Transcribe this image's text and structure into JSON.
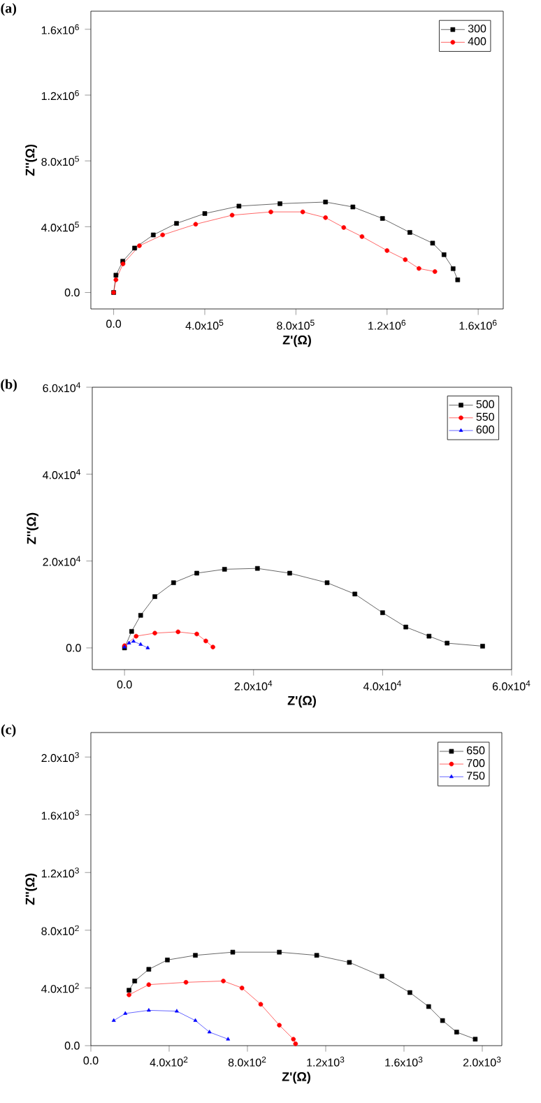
{
  "chart_data": [
    {
      "type": "line",
      "title": "(a)",
      "xlabel": "Z'(Ω)",
      "ylabel": "Z''(Ω)",
      "legend": "top right",
      "grid": false,
      "xlim": [
        -100000,
        1710000
      ],
      "ylim": [
        -100000,
        1710000
      ],
      "xticks": [
        {
          "value": 0,
          "label": "0.0"
        },
        {
          "value": 400000,
          "label": "4.0x10$^{5}$"
        },
        {
          "value": 800000,
          "label": "8.0x10$^{5}$"
        },
        {
          "value": 1200000,
          "label": "1.2x10$^{6}$"
        },
        {
          "value": 1600000,
          "label": "1.6x10$^{6}$"
        }
      ],
      "yticks": [
        {
          "value": 0,
          "label": "0.0"
        },
        {
          "value": 400000,
          "label": "4.0x10$^{5}$"
        },
        {
          "value": 800000,
          "label": "8.0x10$^{5}$"
        },
        {
          "value": 1200000,
          "label": "1.2x10$^{6}$"
        },
        {
          "value": 1600000,
          "label": "1.6x10$^{6}$"
        }
      ],
      "series": [
        {
          "name": "300",
          "color": "#000000",
          "marker": "square",
          "x": [
            0,
            10000,
            40000,
            92000,
            174000,
            276000,
            400000,
            550000,
            730000,
            930000,
            1050000,
            1180000,
            1300000,
            1400000,
            1450000,
            1490000,
            1510000
          ],
          "values": [
            0,
            105000,
            190000,
            270000,
            350000,
            420000,
            480000,
            525000,
            540000,
            550000,
            520000,
            450000,
            365000,
            300000,
            230000,
            145000,
            77000
          ]
        },
        {
          "name": "400",
          "color": "#ff0000",
          "marker": "circle",
          "x": [
            0,
            10000,
            41000,
            113000,
            215000,
            360000,
            520000,
            690000,
            830000,
            930000,
            1010000,
            1090000,
            1200000,
            1280000,
            1340000,
            1410000
          ],
          "values": [
            0,
            77000,
            174000,
            284000,
            350000,
            415000,
            470000,
            490000,
            490000,
            455000,
            395000,
            340000,
            255000,
            200000,
            146000,
            127000
          ]
        }
      ]
    },
    {
      "type": "line",
      "title": "(b)",
      "xlabel": "Z'(Ω)",
      "ylabel": "Z''(Ω)",
      "legend": "top right",
      "grid": false,
      "xlim": [
        -5000,
        60000
      ],
      "ylim": [
        -5000,
        60000
      ],
      "xticks": [
        {
          "value": 0,
          "label": "0.0"
        },
        {
          "value": 20000,
          "label": "2.0x10$^{4}$"
        },
        {
          "value": 40000,
          "label": "4.0x10$^{4}$"
        },
        {
          "value": 60000,
          "label": "6.0x10$^{4}$"
        }
      ],
      "yticks": [
        {
          "value": 0,
          "label": "0.0"
        },
        {
          "value": 20000,
          "label": "2.0x10$^{4}$"
        },
        {
          "value": 40000,
          "label": "4.0x10$^{4}$"
        },
        {
          "value": 60000,
          "label": "6.0x10$^{4}$"
        }
      ],
      "series": [
        {
          "name": "500",
          "color": "#000000",
          "marker": "square",
          "x": [
            0,
            1100,
            2500,
            4700,
            7600,
            11200,
            15500,
            20600,
            25600,
            31400,
            35700,
            40000,
            43600,
            47200,
            50000,
            55500
          ],
          "values": [
            0,
            3800,
            7500,
            11800,
            15000,
            17200,
            18100,
            18300,
            17200,
            15000,
            12400,
            8100,
            4800,
            2700,
            1100,
            400
          ]
        },
        {
          "name": "550",
          "color": "#ff0000",
          "marker": "circle",
          "x": [
            0,
            1800,
            4700,
            8300,
            11200,
            12600,
            13700
          ],
          "values": [
            500,
            2700,
            3400,
            3700,
            3200,
            1600,
            200
          ]
        },
        {
          "name": "600",
          "color": "#0000ff",
          "marker": "triangle",
          "x": [
            0,
            700,
            1400,
            2500,
            3600
          ],
          "values": [
            200,
            1100,
            1500,
            800,
            0
          ]
        }
      ]
    },
    {
      "type": "line",
      "title": "(c)",
      "xlabel": "Z'(Ω)",
      "ylabel": "Z''(Ω)",
      "legend": "top right",
      "grid": false,
      "xlim": [
        0,
        2100
      ],
      "ylim": [
        0,
        2170
      ],
      "xticks": [
        {
          "value": 0,
          "label": "0.0"
        },
        {
          "value": 400,
          "label": "4.0x10$^{2}$"
        },
        {
          "value": 800,
          "label": "8.0x10$^{2}$"
        },
        {
          "value": 1200,
          "label": "1.2x10$^{3}$"
        },
        {
          "value": 1600,
          "label": "1.6x10$^{3}$"
        },
        {
          "value": 2000,
          "label": "2.0x10$^{3}$"
        }
      ],
      "yticks": [
        {
          "value": 0,
          "label": "0.0"
        },
        {
          "value": 400,
          "label": "4.0x10$^{2}$"
        },
        {
          "value": 800,
          "label": "8.0x10$^{2}$"
        },
        {
          "value": 1200,
          "label": "1.2x10$^{3}$"
        },
        {
          "value": 1600,
          "label": "1.6x10$^{3}$"
        },
        {
          "value": 2000,
          "label": "2.0x10$^{3}$"
        }
      ],
      "series": [
        {
          "name": "650",
          "color": "#000000",
          "marker": "square",
          "x": [
            195,
            224,
            296,
            391,
            534,
            725,
            963,
            1154,
            1321,
            1487,
            1630,
            1726,
            1797,
            1869,
            1964
          ],
          "values": [
            384,
            448,
            529,
            594,
            626,
            648,
            648,
            626,
            577,
            481,
            368,
            271,
            174,
            94,
            45
          ]
        },
        {
          "name": "700",
          "color": "#ff0000",
          "marker": "circle",
          "x": [
            195,
            296,
            486,
            677,
            772,
            868,
            963,
            1035,
            1046
          ],
          "values": [
            352,
            423,
            439,
            448,
            400,
            287,
            142,
            45,
            13
          ]
        },
        {
          "name": "750",
          "color": "#0000ff",
          "marker": "triangle",
          "x": [
            117,
            176,
            296,
            439,
            534,
            606,
            701
          ],
          "values": [
            174,
            223,
            245,
            239,
            174,
            94,
            45
          ]
        }
      ]
    }
  ]
}
